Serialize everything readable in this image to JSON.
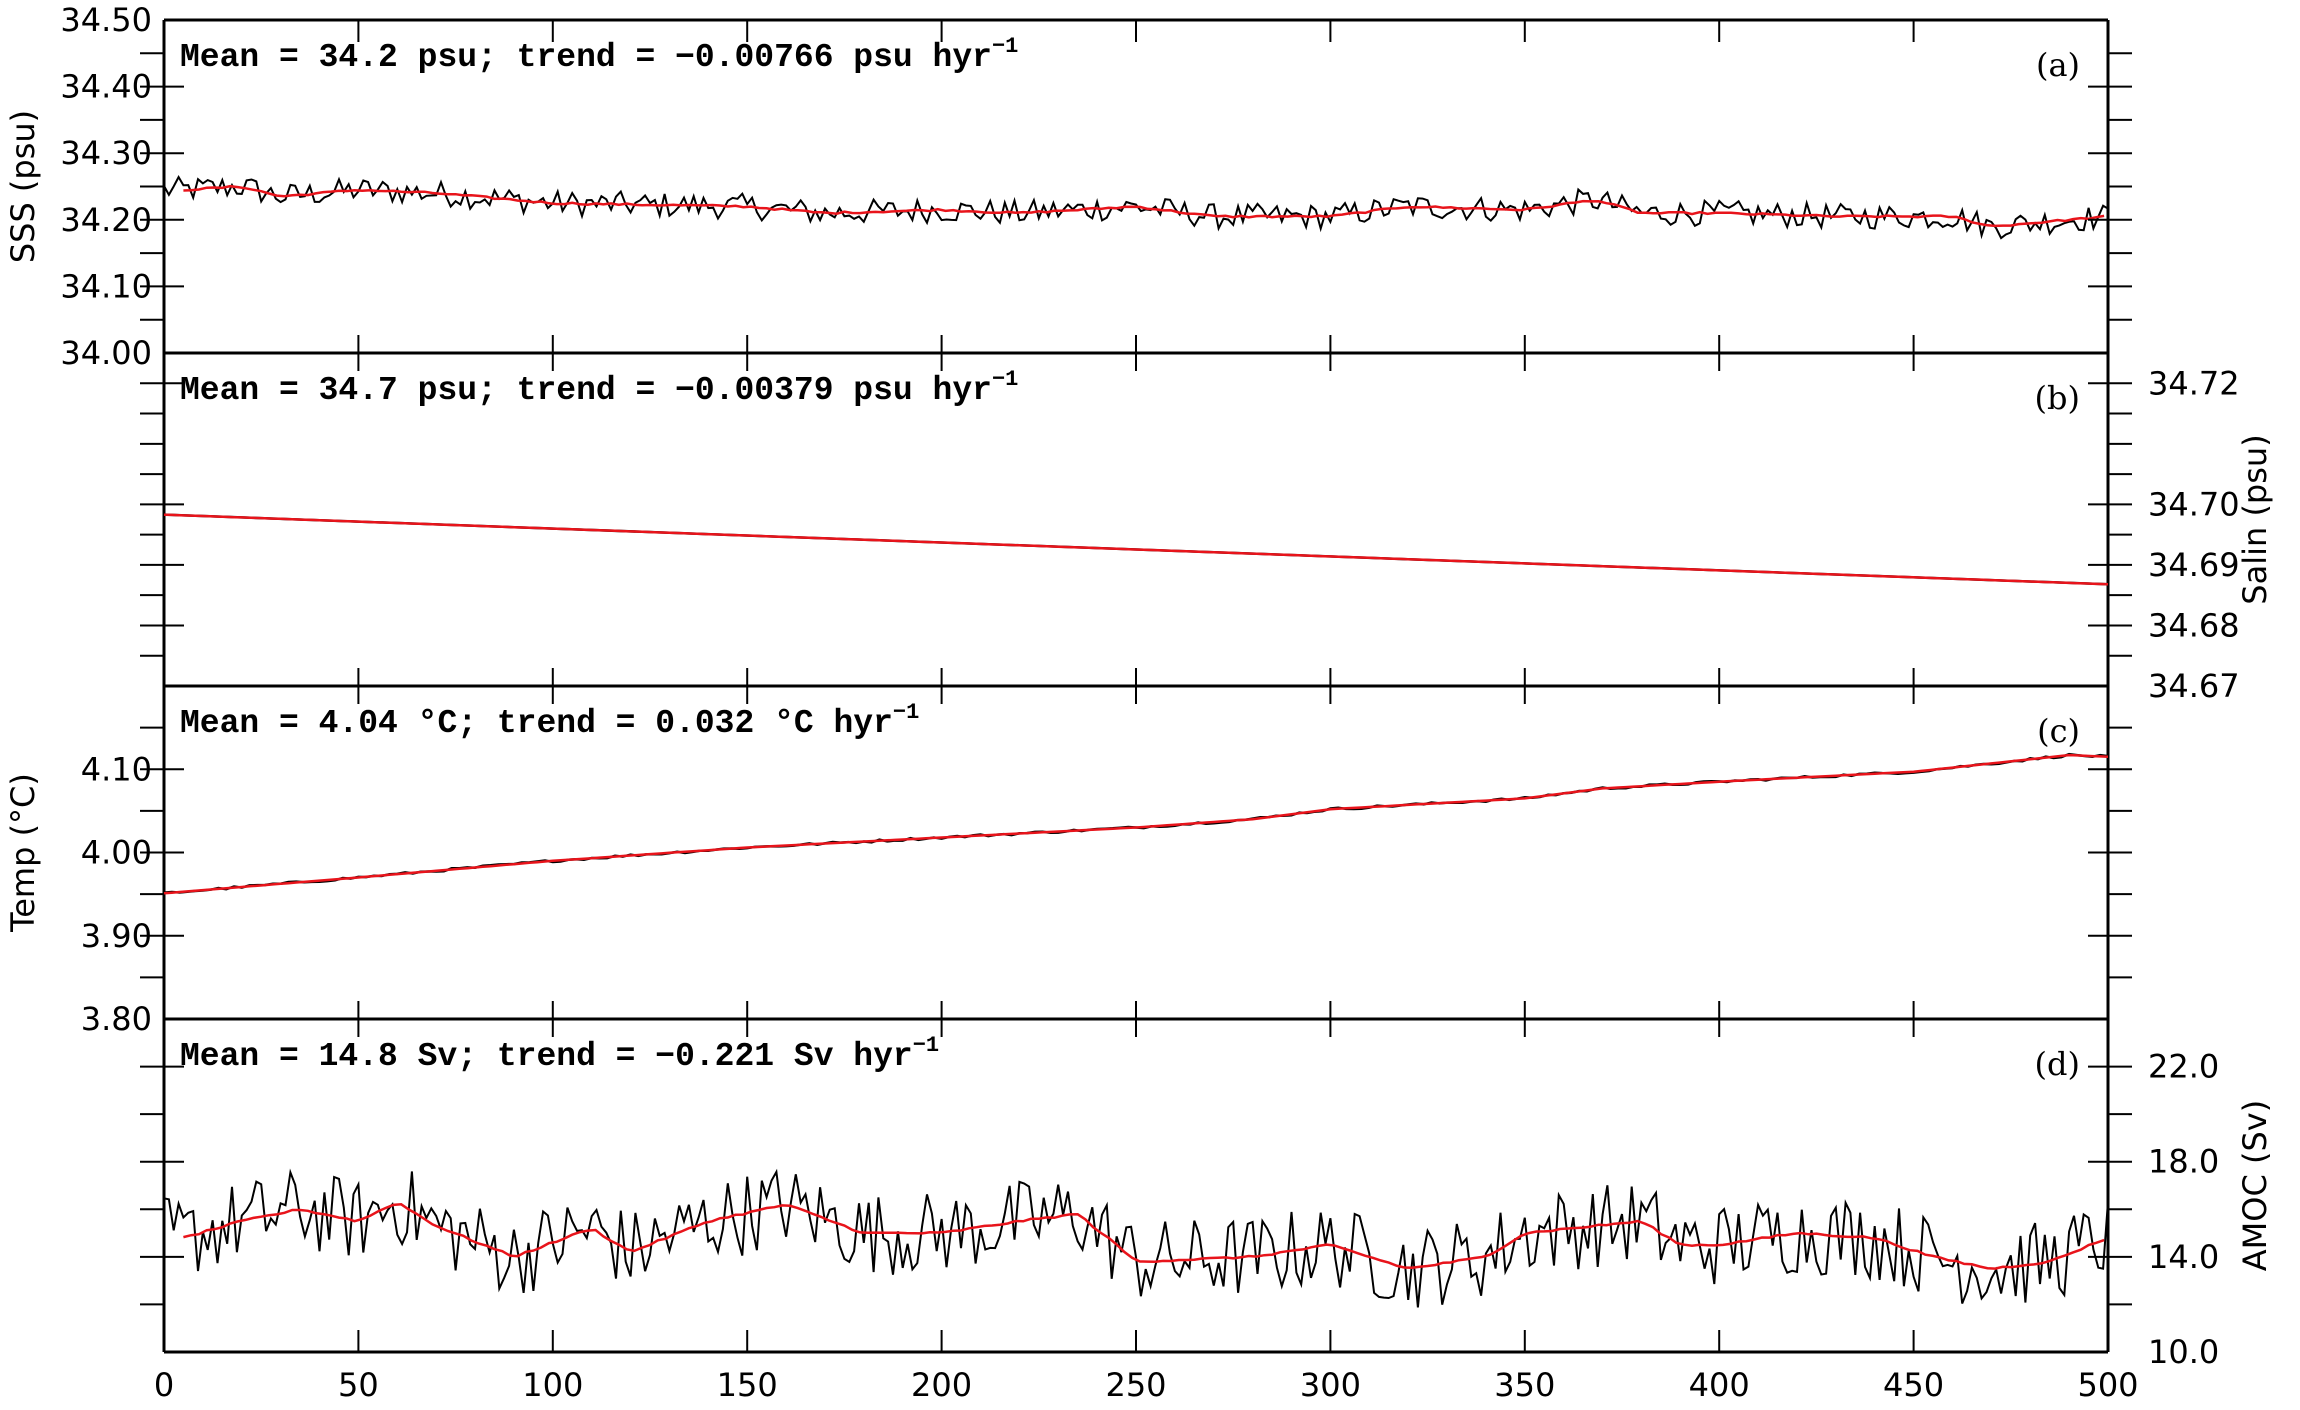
{
  "chart_data": {
    "type": "line",
    "x_axis": {
      "ticks": [
        "0",
        "50",
        "100",
        "150",
        "200",
        "250",
        "300",
        "350",
        "400",
        "450",
        "500"
      ],
      "xlim": [
        0,
        500
      ]
    },
    "panels": [
      {
        "id": "a",
        "label": "(a)",
        "annotation": {
          "text": "Mean = 34.2 psu;  trend = −0.00766 psu hyr",
          "exponent": "−1"
        },
        "ylabel": "SSS (psu)",
        "axis_side": "left",
        "ylim": [
          34.0,
          34.5
        ],
        "yticks": [
          "34.00",
          "34.10",
          "34.20",
          "34.30",
          "34.40",
          "34.50"
        ],
        "raw": {
          "color": "#000000",
          "start": 34.24,
          "end": 34.2,
          "noise": 0.012,
          "bumps": [
            [
              20,
              0.015,
              30
            ],
            [
              65,
              0.01,
              20
            ],
            [
              365,
              0.015,
              10
            ],
            [
              460,
              -0.01,
              20
            ]
          ]
        },
        "smooth": {
          "color": "#e8141b",
          "points": [
            [
              5,
              34.245
            ],
            [
              20,
              34.25
            ],
            [
              30,
              34.235
            ],
            [
              50,
              34.245
            ],
            [
              70,
              34.24
            ],
            [
              100,
              34.225
            ],
            [
              150,
              34.22
            ],
            [
              170,
              34.21
            ],
            [
              200,
              34.215
            ],
            [
              220,
              34.21
            ],
            [
              250,
              34.22
            ],
            [
              270,
              34.205
            ],
            [
              300,
              34.205
            ],
            [
              320,
              34.22
            ],
            [
              350,
              34.215
            ],
            [
              368,
              34.23
            ],
            [
              380,
              34.21
            ],
            [
              400,
              34.21
            ],
            [
              430,
              34.205
            ],
            [
              460,
              34.205
            ],
            [
              470,
              34.19
            ],
            [
              490,
              34.2
            ],
            [
              500,
              34.205
            ]
          ]
        }
      },
      {
        "id": "b",
        "label": "(b)",
        "annotation": {
          "text": "Mean = 34.7 psu;  trend = −0.00379 psu hyr",
          "exponent": "−1"
        },
        "ylabel": "Salin (psu)",
        "axis_side": "right",
        "ylim": [
          34.67,
          34.725
        ],
        "yticks": [
          "34.67",
          "34.68",
          "34.69",
          "34.70",
          "34.72"
        ],
        "ytick_values": [
          34.67,
          34.68,
          34.69,
          34.7,
          34.72
        ],
        "smooth": {
          "color": "#e8141b",
          "points": [
            [
              0,
              34.6983
            ],
            [
              500,
              34.6868
            ]
          ]
        }
      },
      {
        "id": "c",
        "label": "(c)",
        "annotation": {
          "text": "Mean = 4.04 °C;  trend = 0.032 °C hyr",
          "exponent": "−1"
        },
        "ylabel": "Temp (°C)",
        "axis_side": "left",
        "ylim": [
          3.8,
          4.2
        ],
        "yticks": [
          "3.80",
          "3.90",
          "4.00",
          "4.10"
        ],
        "ytick_values": [
          3.8,
          3.9,
          4.0,
          4.1
        ],
        "smooth": {
          "color": "#e8141b",
          "points": [
            [
              0,
              3.951
            ],
            [
              50,
              3.97
            ],
            [
              100,
              3.99
            ],
            [
              150,
              4.006
            ],
            [
              200,
              4.018
            ],
            [
              250,
              4.03
            ],
            [
              280,
              4.04
            ],
            [
              300,
              4.052
            ],
            [
              350,
              4.065
            ],
            [
              370,
              4.077
            ],
            [
              400,
              4.085
            ],
            [
              450,
              4.097
            ],
            [
              490,
              4.117
            ],
            [
              500,
              4.115
            ]
          ]
        }
      },
      {
        "id": "d",
        "label": "(d)",
        "annotation": {
          "text": "Mean = 14.8 Sv;  trend = −0.221 Sv hyr",
          "exponent": "−1"
        },
        "ylabel": "AMOC (Sv)",
        "axis_side": "right",
        "ylim": [
          10.0,
          24.0
        ],
        "yticks": [
          "10.0",
          "14.0",
          "18.0",
          "22.0"
        ],
        "ytick_values": [
          10.0,
          14.0,
          18.0,
          22.0
        ],
        "raw": {
          "color": "#000000",
          "start": 15.0,
          "end": 14.5,
          "noise": 1.1
        },
        "smooth": {
          "color": "#e8141b",
          "points": [
            [
              5,
              14.8
            ],
            [
              20,
              15.5
            ],
            [
              35,
              16.0
            ],
            [
              50,
              15.5
            ],
            [
              60,
              16.3
            ],
            [
              70,
              15.3
            ],
            [
              90,
              14.0
            ],
            [
              110,
              15.2
            ],
            [
              120,
              14.2
            ],
            [
              140,
              15.5
            ],
            [
              160,
              16.2
            ],
            [
              180,
              15.0
            ],
            [
              200,
              15.0
            ],
            [
              220,
              15.5
            ],
            [
              235,
              15.8
            ],
            [
              245,
              14.5
            ],
            [
              250,
              13.8
            ],
            [
              280,
              14.0
            ],
            [
              300,
              14.5
            ],
            [
              320,
              13.5
            ],
            [
              340,
              14.0
            ],
            [
              350,
              15.0
            ],
            [
              380,
              15.5
            ],
            [
              390,
              14.5
            ],
            [
              400,
              14.5
            ],
            [
              420,
              15.0
            ],
            [
              440,
              14.8
            ],
            [
              455,
              14.0
            ],
            [
              470,
              13.5
            ],
            [
              485,
              13.8
            ],
            [
              500,
              14.8
            ]
          ]
        }
      }
    ]
  }
}
